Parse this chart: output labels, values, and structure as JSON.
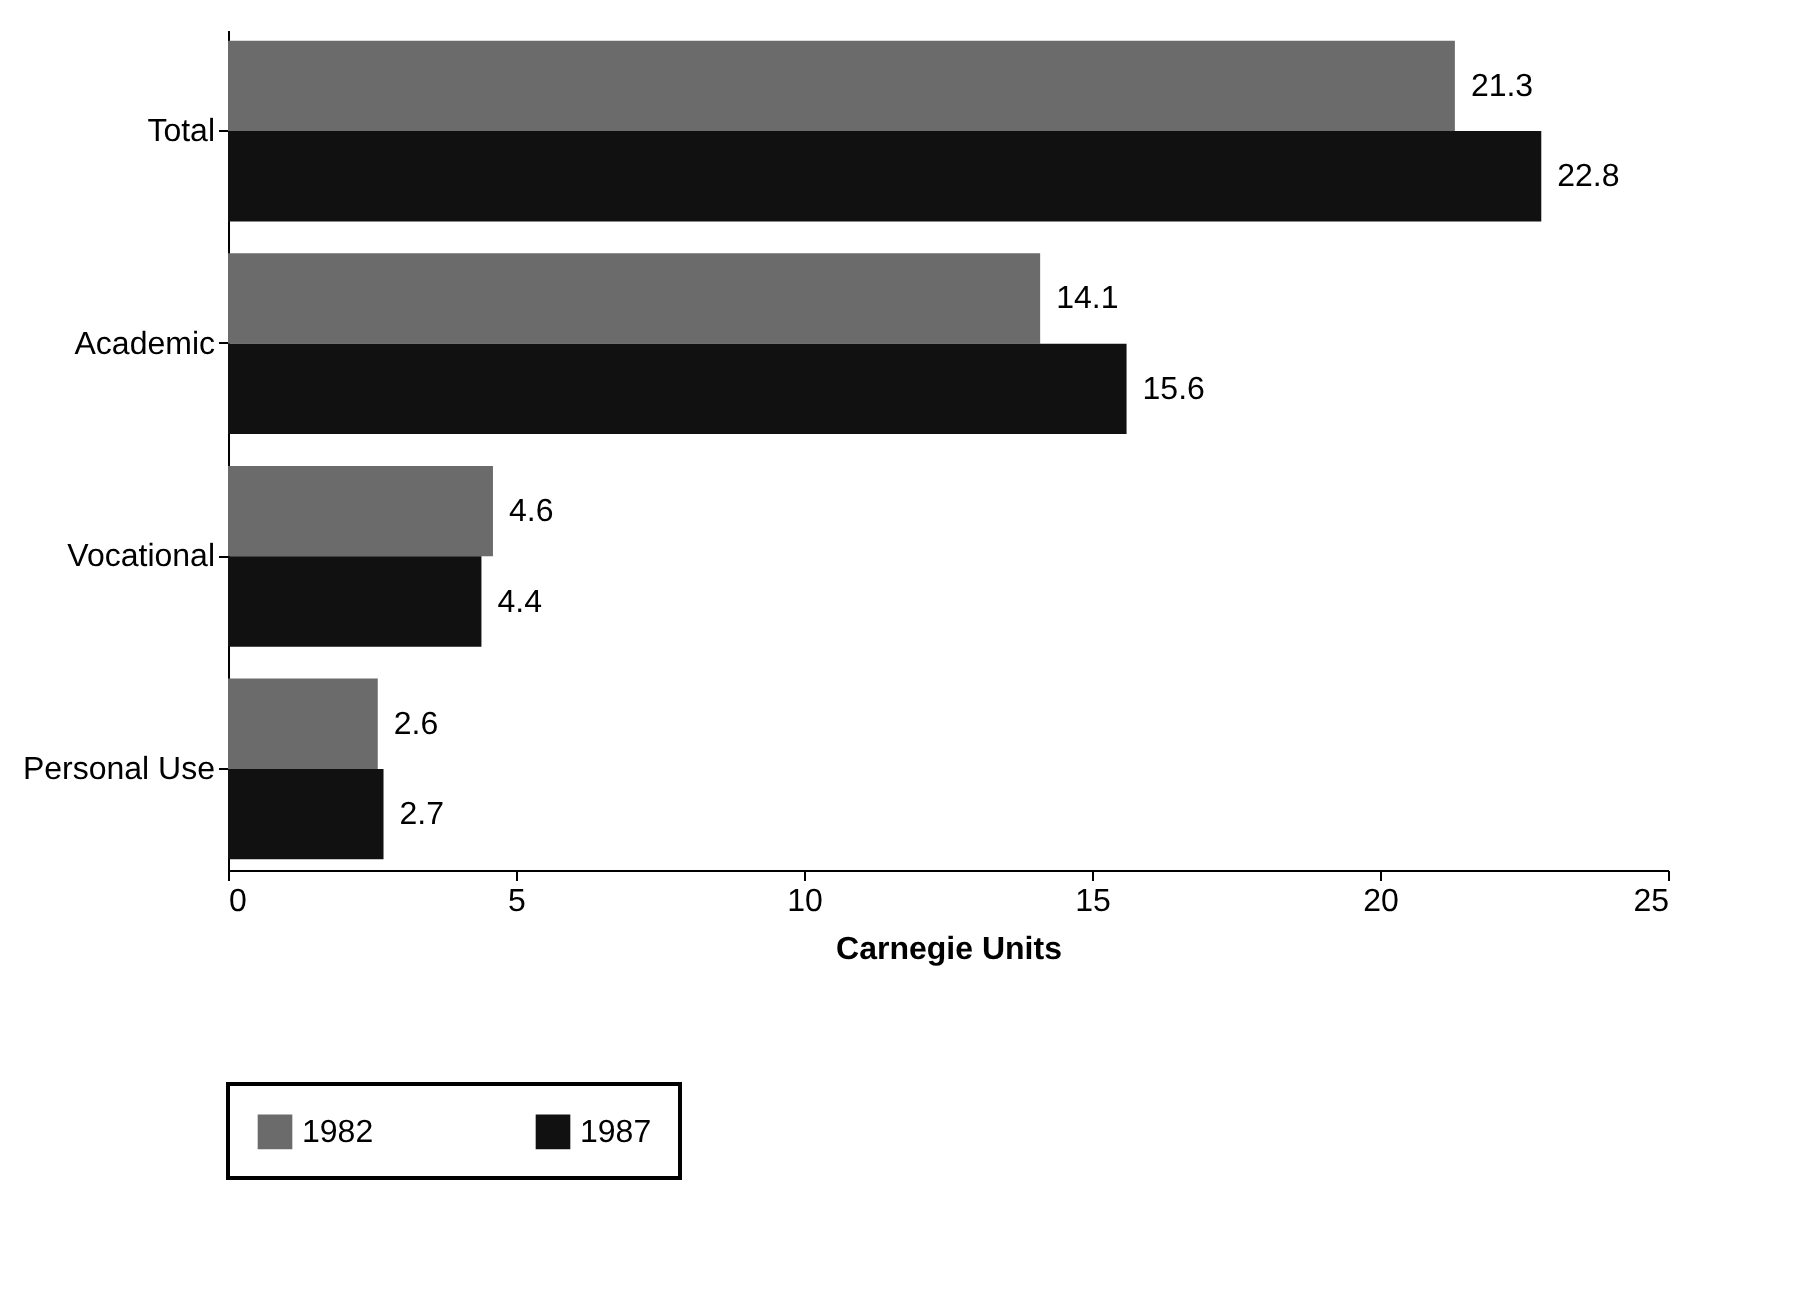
{
  "chart_data": {
    "type": "bar",
    "orientation": "horizontal",
    "xlabel": "Carnegie Units",
    "categories": [
      "Total",
      "Academic",
      "Vocational",
      "Personal Use"
    ],
    "series": [
      {
        "name": "1982",
        "color": "#6b6b6b",
        "values": [
          21.3,
          14.1,
          4.6,
          2.6
        ]
      },
      {
        "name": "1987",
        "color": "#111111",
        "values": [
          22.8,
          15.6,
          4.4,
          2.7
        ]
      }
    ],
    "xlim": [
      0,
      25
    ],
    "xticks": [
      0,
      5,
      10,
      15,
      20,
      25
    ],
    "data_labels": true,
    "legend": "bottom"
  }
}
